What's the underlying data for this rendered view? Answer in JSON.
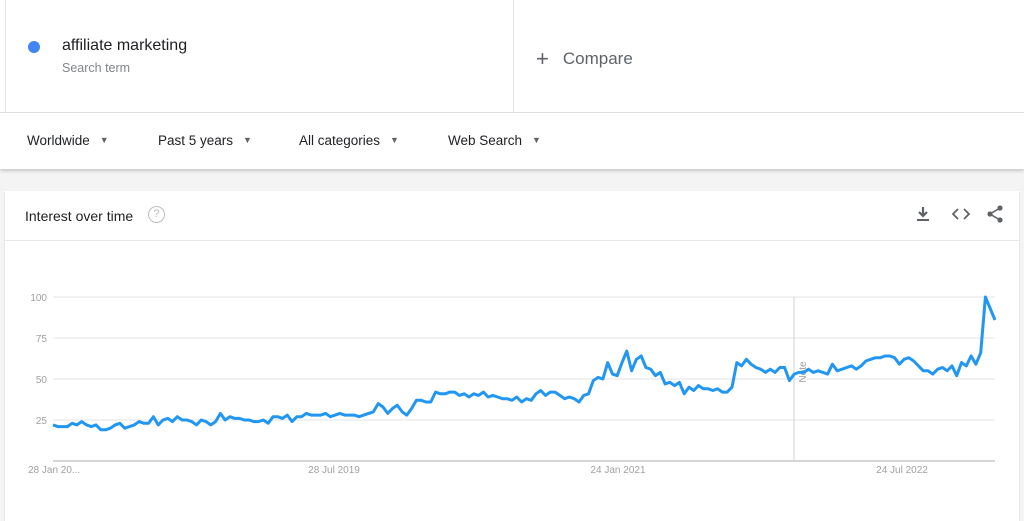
{
  "search_term": {
    "name": "affiliate marketing",
    "subtitle": "Search term",
    "color": "#4285f4"
  },
  "compare": {
    "label": "Compare",
    "icon": "plus-icon"
  },
  "filters": [
    {
      "label": "Worldwide"
    },
    {
      "label": "Past 5 years"
    },
    {
      "label": "All categories"
    },
    {
      "label": "Web Search"
    }
  ],
  "card": {
    "title": "Interest over time",
    "help_icon": "?",
    "actions": [
      "download-icon",
      "embed-icon",
      "share-icon"
    ]
  },
  "chart_data": {
    "type": "line",
    "title": "",
    "ylim": [
      0,
      100
    ],
    "yticks": [
      25,
      50,
      75,
      100
    ],
    "xtick_labels": [
      "28 Jan 20...",
      "28 Jul 2019",
      "24 Jan 2021",
      "24 Jul 2022"
    ],
    "annotation": "Note",
    "grid": true,
    "line_color": "#2196f3",
    "series": [
      {
        "values": [
          22,
          21,
          21,
          21,
          23,
          22,
          24,
          22,
          21,
          22,
          19,
          19,
          20,
          22,
          23,
          20,
          21,
          22,
          24,
          23,
          23,
          27,
          22,
          25,
          26,
          24,
          27,
          25,
          25,
          24,
          22,
          25,
          24,
          22,
          24,
          29,
          25,
          27,
          26,
          26,
          25,
          25,
          24,
          24,
          25,
          23,
          27,
          27,
          26,
          28,
          24,
          27,
          27,
          29,
          28,
          28,
          28,
          29,
          27,
          28,
          29,
          28,
          28,
          28,
          27,
          28,
          29,
          30,
          35,
          33,
          29,
          32,
          34,
          30,
          28,
          32,
          37,
          37,
          36,
          36,
          42,
          41,
          41,
          42,
          42,
          40,
          41,
          39,
          41,
          40,
          42,
          39,
          40,
          39,
          38,
          38,
          37,
          39,
          36,
          38,
          37,
          41,
          43,
          40,
          42,
          42,
          40,
          38,
          39,
          38,
          36,
          40,
          41,
          49,
          51,
          50,
          60,
          53,
          52,
          60,
          67,
          55,
          62,
          64,
          57,
          56,
          52,
          54,
          47,
          48,
          46,
          48,
          41,
          45,
          43,
          46,
          44,
          44,
          43,
          44,
          42,
          42,
          45,
          60,
          58,
          62,
          59,
          57,
          56,
          54,
          56,
          54,
          57,
          57,
          49,
          53,
          54,
          54,
          56,
          54,
          55,
          54,
          53,
          59,
          55,
          56,
          57,
          58,
          56,
          58,
          61,
          62,
          63,
          63,
          64,
          64,
          63,
          59,
          62,
          63,
          61,
          58,
          55,
          55,
          53,
          56,
          57,
          55,
          58,
          52,
          60,
          58,
          64,
          59,
          66,
          100,
          93,
          86
        ]
      }
    ]
  }
}
